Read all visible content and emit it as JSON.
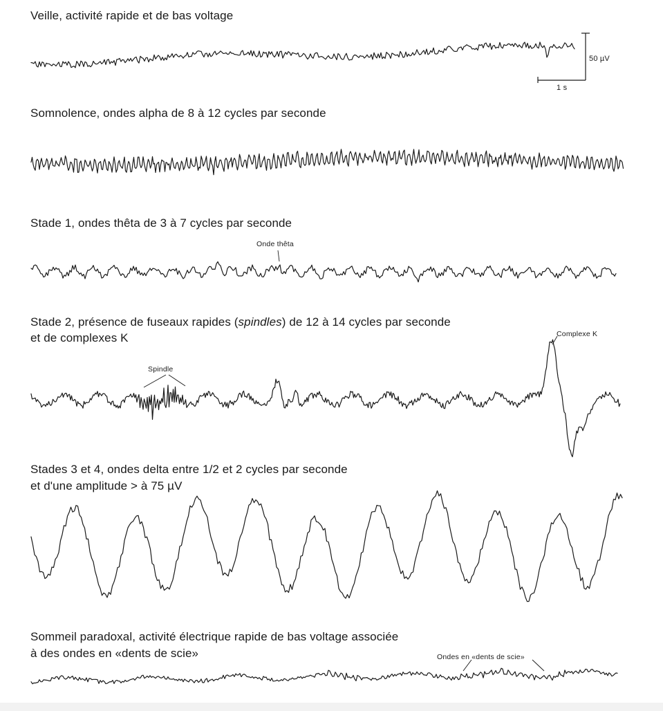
{
  "stages": [
    {
      "id": "veille",
      "title": "Veille, activité rapide et de bas voltage"
    },
    {
      "id": "somnolence",
      "title": "Somnolence, ondes alpha de 8 à 12 cycles par seconde"
    },
    {
      "id": "stade1",
      "title": "Stade 1, ondes thêta de 3 à 7 cycles par seconde",
      "annotation": "Onde thêta"
    },
    {
      "id": "stade2",
      "title_line1_prefix": "Stade 2, présence de fuseaux rapides (",
      "title_line1_italic": "spindles",
      "title_line1_suffix": ") de 12 à 14 cycles par seconde",
      "title_line2": "et de complexes K",
      "annotation_spindle": "Spindle",
      "annotation_k": "Complexe K"
    },
    {
      "id": "stade34",
      "title_line1": "Stades 3 et 4, ondes delta entre 1/2 et 2 cycles par seconde",
      "title_line2": "et d'une amplitude > à 75 µV"
    },
    {
      "id": "paradoxal",
      "title_line1": "Sommeil paradoxal, activité électrique rapide de bas voltage associée",
      "title_line2": "à des ondes en «dents de scie»",
      "annotation": "Ondes en «dents de scie»"
    }
  ],
  "scale_bar": {
    "amplitude_label": "50 µV",
    "time_label": "1 s"
  }
}
